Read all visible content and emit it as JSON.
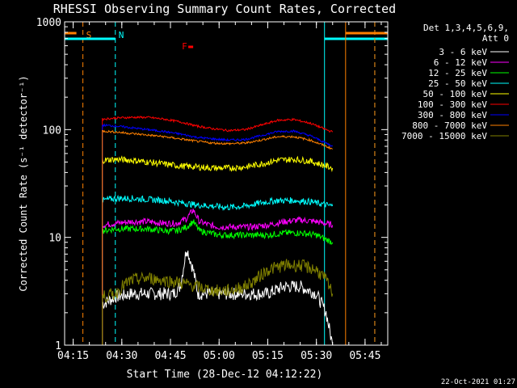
{
  "chart_data": {
    "type": "line",
    "title": "RHESSI Observing Summary Count Rates, Corrected",
    "xlabel": "Start Time (28-Dec-12 04:12:22)",
    "ylabel": "Corrected Count Rate (s⁻¹ detector⁻¹)",
    "y_scale": "log",
    "ylim": [
      1,
      1000
    ],
    "xlim": [
      "04:12:22",
      "05:52:00"
    ],
    "x_ticks": [
      "04:15",
      "04:30",
      "04:45",
      "05:00",
      "05:15",
      "05:30",
      "05:45"
    ],
    "y_ticks": [
      "1",
      "10",
      "100",
      "1000"
    ],
    "grid": false,
    "legend_position": "top-right",
    "legend_header": [
      "Det 1,3,4,5,6,9,",
      "Att 0"
    ],
    "footer_date": "22-Oct-2021 01:27",
    "markers": [
      {
        "label": "S",
        "color": "#ff8000",
        "bar": [
          "04:12:22",
          "04:16:00"
        ],
        "line": "04:18:00",
        "line_style": "dashed"
      },
      {
        "label": "N",
        "color": "#00ffff",
        "bar": [
          "04:12:22",
          "04:28:00"
        ],
        "line": "04:28:00",
        "line_style": "dashed"
      },
      {
        "label": "F",
        "color": "#ff0000",
        "bar": [
          "04:50:30",
          "04:52:00"
        ]
      },
      {
        "label": "",
        "color": "#00ffff",
        "bar": [
          "05:32:30",
          "05:52:00"
        ],
        "line": "05:32:30",
        "line_style": "solid"
      },
      {
        "label": "",
        "color": "#00ffff",
        "line": "05:48:00",
        "line_style": "dashed"
      },
      {
        "label": "",
        "color": "#ff8000",
        "bar": [
          "05:39:00",
          "05:52:00"
        ],
        "line": "05:39:00",
        "line_style": "solid"
      },
      {
        "label": "",
        "color": "#ff8000",
        "line": "05:48:00",
        "line_style": "dashed"
      }
    ],
    "series": [
      {
        "name": "3 - 6 keV",
        "color": "#ffffff",
        "x": [
          "04:24:00",
          "04:28:00",
          "04:33:00",
          "04:38:00",
          "04:43:00",
          "04:46:00",
          "04:48:00",
          "04:50:00",
          "04:52:00",
          "04:53:30",
          "04:55:00",
          "05:00:00",
          "05:05:00",
          "05:10:00",
          "05:15:00",
          "05:20:00",
          "05:25:00",
          "05:30:00",
          "05:33:00",
          "05:35:00"
        ],
        "values": [
          2.4,
          2.8,
          3.0,
          3.0,
          3.0,
          3.0,
          3.5,
          8.0,
          5.0,
          3.0,
          3.0,
          3.0,
          3.0,
          3.0,
          3.0,
          3.5,
          3.5,
          3.0,
          2.0,
          1.0
        ]
      },
      {
        "name": "6 - 12 keV",
        "color": "#ff00ff",
        "x": [
          "04:24:00",
          "04:28:00",
          "04:33:00",
          "04:38:00",
          "04:43:00",
          "04:47:00",
          "04:50:00",
          "04:52:00",
          "04:54:00",
          "04:57:00",
          "05:00:00",
          "05:05:00",
          "05:10:00",
          "05:15:00",
          "05:20:00",
          "05:25:00",
          "05:30:00",
          "05:35:00"
        ],
        "values": [
          13.0,
          13.5,
          14.0,
          14.0,
          13.5,
          13.5,
          15.0,
          18.0,
          14.0,
          13.0,
          12.5,
          12.5,
          12.5,
          13.0,
          14.0,
          14.5,
          14.0,
          13.0
        ]
      },
      {
        "name": "12 - 25 keV",
        "color": "#00ff00",
        "x": [
          "04:24:00",
          "04:28:00",
          "04:33:00",
          "04:38:00",
          "04:43:00",
          "04:47:00",
          "04:50:00",
          "04:52:00",
          "04:54:00",
          "04:57:00",
          "05:00:00",
          "05:05:00",
          "05:10:00",
          "05:15:00",
          "05:20:00",
          "05:25:00",
          "05:30:00",
          "05:35:00"
        ],
        "values": [
          11.5,
          12.0,
          12.0,
          12.0,
          11.5,
          11.5,
          12.5,
          14.0,
          11.5,
          11.0,
          10.5,
          10.5,
          10.5,
          10.5,
          11.0,
          11.0,
          10.5,
          9.0
        ]
      },
      {
        "name": "25 - 50 keV",
        "color": "#00ffff",
        "x": [
          "04:24:00",
          "04:28:00",
          "04:33:00",
          "04:38:00",
          "04:43:00",
          "04:48:00",
          "04:53:00",
          "04:58:00",
          "05:03:00",
          "05:08:00",
          "05:13:00",
          "05:18:00",
          "05:23:00",
          "05:28:00",
          "05:33:00",
          "05:35:00"
        ],
        "values": [
          22,
          23,
          23,
          22.5,
          22,
          21,
          20,
          19.5,
          19,
          19.5,
          21,
          22,
          22,
          21.5,
          20,
          19.5
        ]
      },
      {
        "name": "50 - 100 keV",
        "color": "#ffff00",
        "x": [
          "04:24:00",
          "04:28:00",
          "04:33:00",
          "04:38:00",
          "04:43:00",
          "04:48:00",
          "04:53:00",
          "04:58:00",
          "05:03:00",
          "05:08:00",
          "05:13:00",
          "05:18:00",
          "05:23:00",
          "05:28:00",
          "05:33:00",
          "05:35:00"
        ],
        "values": [
          52,
          53,
          52,
          50,
          48,
          46,
          45,
          44,
          44,
          45,
          48,
          52,
          53,
          51,
          46,
          44
        ]
      },
      {
        "name": "100 - 300 keV",
        "color": "#ff0000",
        "x": [
          "04:24:00",
          "04:28:00",
          "04:33:00",
          "04:38:00",
          "04:43:00",
          "04:48:00",
          "04:53:00",
          "04:58:00",
          "05:03:00",
          "05:08:00",
          "05:13:00",
          "05:18:00",
          "05:23:00",
          "05:28:00",
          "05:33:00",
          "05:35:00"
        ],
        "values": [
          125,
          128,
          130,
          130,
          125,
          118,
          108,
          102,
          98,
          100,
          110,
          122,
          124,
          115,
          100,
          95
        ]
      },
      {
        "name": "300 - 800 keV",
        "color": "#0000ff",
        "x": [
          "04:24:00",
          "04:28:00",
          "04:33:00",
          "04:38:00",
          "04:43:00",
          "04:48:00",
          "04:53:00",
          "04:58:00",
          "05:03:00",
          "05:08:00",
          "05:13:00",
          "05:18:00",
          "05:23:00",
          "05:28:00",
          "05:33:00",
          "05:35:00"
        ],
        "values": [
          110,
          108,
          104,
          100,
          96,
          91,
          85,
          82,
          80,
          81,
          88,
          96,
          97,
          88,
          75,
          70
        ]
      },
      {
        "name": "800 - 7000 keV",
        "color": "#ff8000",
        "x": [
          "04:24:00",
          "04:28:00",
          "04:33:00",
          "04:38:00",
          "04:43:00",
          "04:48:00",
          "04:53:00",
          "04:58:00",
          "05:03:00",
          "05:08:00",
          "05:13:00",
          "05:18:00",
          "05:23:00",
          "05:28:00",
          "05:33:00",
          "05:35:00"
        ],
        "values": [
          97,
          95,
          92,
          89,
          86,
          82,
          78,
          75,
          74,
          75,
          80,
          86,
          86,
          80,
          70,
          66
        ]
      },
      {
        "name": "7000 - 15000 keV",
        "color": "#808000",
        "x": [
          "04:24:00",
          "04:28:00",
          "04:30:00",
          "04:33:00",
          "04:38:00",
          "04:43:00",
          "04:48:00",
          "04:53:00",
          "04:58:00",
          "05:03:00",
          "05:08:00",
          "05:11:00",
          "05:15:00",
          "05:20:00",
          "05:25:00",
          "05:30:00",
          "05:33:00",
          "05:35:00"
        ],
        "values": [
          2.8,
          3.0,
          3.5,
          4.0,
          4.2,
          4.0,
          3.8,
          3.5,
          3.2,
          3.2,
          3.5,
          4.0,
          5.0,
          5.5,
          5.5,
          5.0,
          4.0,
          3.0
        ]
      }
    ]
  }
}
